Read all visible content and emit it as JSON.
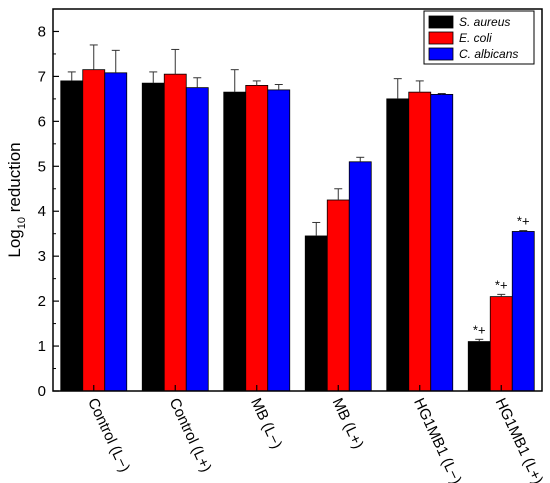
{
  "chart_data": {
    "type": "bar",
    "title": "",
    "xlabel": "",
    "ylabel": "Log",
    "ylabel_sub": "10",
    "ylabel_suffix": " reduction",
    "ylim": [
      0,
      8.5
    ],
    "yticks": [
      "0",
      "1",
      "2",
      "3",
      "4",
      "5",
      "6",
      "7",
      "8"
    ],
    "categories": [
      "Control (L−)",
      "Control (L+)",
      "MB (L−)",
      "MB (L+)",
      "HG1MB1 (L−)",
      "HG1MB1 (L+)"
    ],
    "series": [
      {
        "name": "S. aureus",
        "color": "#000000",
        "values": [
          6.9,
          6.85,
          6.65,
          3.45,
          6.5,
          1.1
        ],
        "errors": [
          0.2,
          0.25,
          0.5,
          0.3,
          0.45,
          0.05
        ],
        "annotations": [
          "",
          "",
          "",
          "",
          "",
          "*+"
        ]
      },
      {
        "name": "E. coli",
        "color": "#ff0000",
        "values": [
          7.15,
          7.05,
          6.8,
          4.25,
          6.65,
          2.1
        ],
        "errors": [
          0.55,
          0.55,
          0.1,
          0.25,
          0.25,
          0.05
        ],
        "annotations": [
          "",
          "",
          "",
          "",
          "",
          "*+"
        ]
      },
      {
        "name": "C. albicans",
        "color": "#0000ff",
        "values": [
          7.08,
          6.75,
          6.7,
          5.1,
          6.6,
          3.55
        ],
        "errors": [
          0.5,
          0.22,
          0.12,
          0.1,
          0.02,
          0.02
        ],
        "annotations": [
          "",
          "",
          "",
          "",
          "",
          "*+"
        ]
      }
    ],
    "legend_position": "top-right",
    "grid": false
  }
}
